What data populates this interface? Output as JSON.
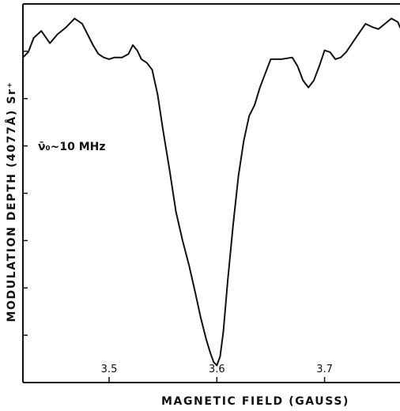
{
  "chart_data": {
    "type": "line",
    "xlabel": "MAGNETIC FIELD (GAUSS)",
    "ylabel": "MODULATION DEPTH (4077Å) Sr⁺",
    "annotation": "ν̄₀~10 MHz",
    "x_ticks": [
      3.5,
      3.6,
      3.7
    ],
    "xlim": [
      3.42,
      3.77
    ],
    "ylim": [
      0,
      1
    ],
    "grid": false,
    "series": [
      {
        "x": [
          3.42,
          3.425,
          3.43,
          3.437,
          3.445,
          3.452,
          3.46,
          3.468,
          3.475,
          3.48,
          3.485,
          3.49,
          3.495,
          3.5,
          3.505,
          3.512,
          3.518,
          3.522,
          3.526,
          3.53,
          3.535,
          3.54,
          3.545,
          3.55,
          3.556,
          3.562,
          3.568,
          3.574,
          3.58,
          3.585,
          3.59,
          3.594,
          3.597,
          3.6,
          3.603,
          3.606,
          3.61,
          3.615,
          3.62,
          3.625,
          3.63,
          3.635,
          3.64,
          3.645,
          3.65,
          3.66,
          3.67,
          3.675,
          3.68,
          3.685,
          3.69,
          3.695,
          3.7,
          3.705,
          3.71,
          3.715,
          3.72,
          3.73,
          3.738,
          3.745,
          3.75,
          3.756,
          3.762,
          3.768,
          3.77
        ],
        "y": [
          0.878,
          0.893,
          0.933,
          0.953,
          0.918,
          0.943,
          0.963,
          0.988,
          0.973,
          0.943,
          0.913,
          0.888,
          0.878,
          0.873,
          0.878,
          0.878,
          0.888,
          0.913,
          0.898,
          0.873,
          0.863,
          0.843,
          0.773,
          0.673,
          0.563,
          0.443,
          0.363,
          0.293,
          0.213,
          0.143,
          0.083,
          0.043,
          0.018,
          0.008,
          0.033,
          0.103,
          0.243,
          0.403,
          0.543,
          0.643,
          0.713,
          0.743,
          0.793,
          0.833,
          0.873,
          0.873,
          0.878,
          0.853,
          0.813,
          0.793,
          0.813,
          0.853,
          0.898,
          0.893,
          0.873,
          0.878,
          0.893,
          0.938,
          0.973,
          0.963,
          0.958,
          0.973,
          0.988,
          0.978,
          0.963
        ]
      }
    ]
  }
}
